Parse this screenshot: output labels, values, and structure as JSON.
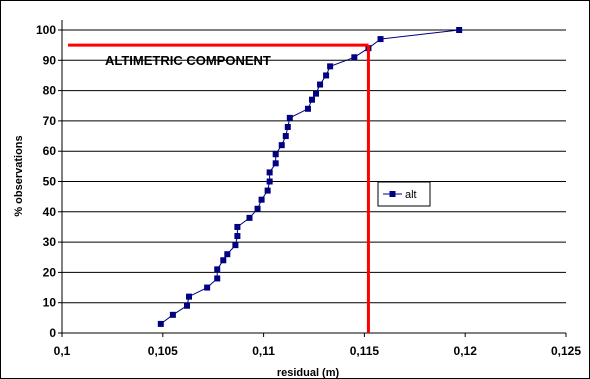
{
  "chart_data": {
    "type": "line",
    "xlabel": "residual  (m)",
    "ylabel": "% observations",
    "xlim": [
      0.1,
      0.125
    ],
    "ylim": [
      0,
      100
    ],
    "x_ticks": [
      "0,1",
      "0,105",
      "0,11",
      "0,115",
      "0,12",
      "0,125"
    ],
    "y_ticks": [
      "0",
      "10",
      "20",
      "30",
      "40",
      "50",
      "60",
      "70",
      "80",
      "90",
      "100"
    ],
    "grid": "horizontal",
    "legend_position": "right",
    "series": [
      {
        "name": "alt",
        "color": "#000080",
        "marker": "square",
        "points": [
          [
            0.1049,
            3
          ],
          [
            0.1055,
            6
          ],
          [
            0.1062,
            9
          ],
          [
            0.1063,
            12
          ],
          [
            0.1072,
            15
          ],
          [
            0.1077,
            18
          ],
          [
            0.1077,
            21
          ],
          [
            0.108,
            24
          ],
          [
            0.1082,
            26
          ],
          [
            0.1086,
            29
          ],
          [
            0.1087,
            32
          ],
          [
            0.1087,
            35
          ],
          [
            0.1093,
            38
          ],
          [
            0.1097,
            41
          ],
          [
            0.1099,
            44
          ],
          [
            0.1102,
            47
          ],
          [
            0.1103,
            50
          ],
          [
            0.1103,
            53
          ],
          [
            0.1106,
            56
          ],
          [
            0.1106,
            59
          ],
          [
            0.1109,
            62
          ],
          [
            0.1111,
            65
          ],
          [
            0.1112,
            68
          ],
          [
            0.1113,
            71
          ],
          [
            0.1122,
            74
          ],
          [
            0.1124,
            77
          ],
          [
            0.1126,
            79
          ],
          [
            0.1128,
            82
          ],
          [
            0.1131,
            85
          ],
          [
            0.1133,
            88
          ],
          [
            0.1145,
            91
          ],
          [
            0.1152,
            94
          ],
          [
            0.1158,
            97
          ],
          [
            0.1197,
            100
          ]
        ]
      }
    ],
    "reference_lines": {
      "color": "#ff0000",
      "horizontal": {
        "y": 95,
        "x_from": 0.1003,
        "x_to": 0.1152
      },
      "vertical": {
        "x": 0.1152,
        "y_from": 0,
        "y_to": 95
      }
    },
    "annotation": "ALTIMETRIC COMPONENT"
  }
}
